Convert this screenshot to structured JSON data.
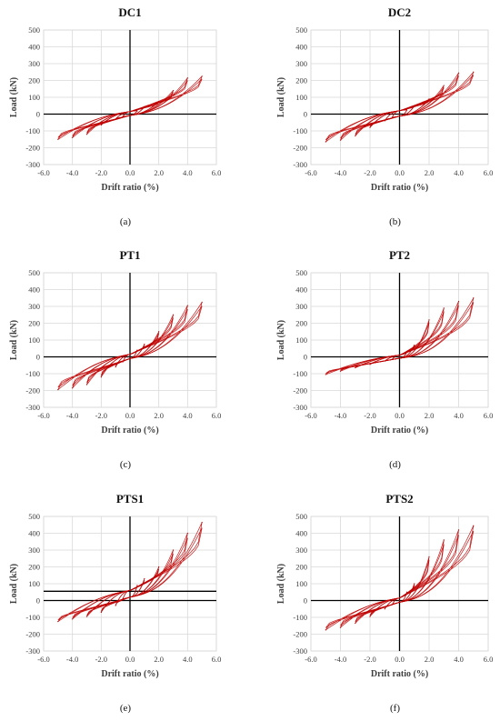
{
  "chart_data": [
    {
      "type": "line",
      "title": "DC1",
      "caption": "(a)",
      "xlabel": "Drift ratio (%)",
      "ylabel": "Load (kN)",
      "xlim": [
        -6,
        6
      ],
      "ylim": [
        -300,
        500
      ],
      "xticks": [
        "-6.0",
        "-4.0",
        "-2.0",
        "0.0",
        "2.0",
        "4.0",
        "6.0"
      ],
      "yticks": [
        "-300",
        "-200",
        "-100",
        "0",
        "100",
        "200",
        "300",
        "400",
        "500"
      ],
      "grid": true,
      "color": "#c00000",
      "peak_pos": [
        [
          0.5,
          20
        ],
        [
          1,
          45
        ],
        [
          2,
          75
        ],
        [
          3,
          140
        ],
        [
          4,
          215
        ],
        [
          5,
          225
        ]
      ],
      "peak_neg": [
        [
          -0.5,
          -15
        ],
        [
          -1,
          -30
        ],
        [
          -2,
          -65
        ],
        [
          -3,
          -120
        ],
        [
          -4,
          -140
        ],
        [
          -5,
          -150
        ]
      ],
      "pinch_pos": 15,
      "pinch_neg": -8,
      "pinch_slope": 12,
      "series": [
        {
          "x": [
            0,
            0.5,
            1,
            2,
            3,
            4,
            5
          ],
          "y": [
            0,
            20,
            45,
            75,
            140,
            215,
            225
          ]
        },
        {
          "x": [
            0,
            -0.5,
            -1,
            -2,
            -3,
            -4,
            -5
          ],
          "y": [
            0,
            -15,
            -30,
            -65,
            -120,
            -140,
            -150
          ]
        }
      ]
    },
    {
      "type": "line",
      "title": "DC2",
      "caption": "(b)",
      "xlabel": "Drift ratio (%)",
      "ylabel": "Load (kN)",
      "xlim": [
        -6,
        6
      ],
      "ylim": [
        -300,
        500
      ],
      "xticks": [
        "-6.0",
        "-4.0",
        "-2.0",
        "0.0",
        "2.0",
        "4.0",
        "6.0"
      ],
      "yticks": [
        "-300",
        "-200",
        "-100",
        "0",
        "100",
        "200",
        "300",
        "400",
        "500"
      ],
      "grid": true,
      "color": "#c00000",
      "peak_pos": [
        [
          0.5,
          25
        ],
        [
          1,
          50
        ],
        [
          2,
          90
        ],
        [
          3,
          170
        ],
        [
          4,
          245
        ],
        [
          5,
          250
        ]
      ],
      "peak_neg": [
        [
          -0.5,
          -20
        ],
        [
          -1,
          -40
        ],
        [
          -2,
          -80
        ],
        [
          -3,
          -130
        ],
        [
          -4,
          -155
        ],
        [
          -5,
          -165
        ]
      ],
      "pinch_pos": 20,
      "pinch_neg": -12,
      "pinch_slope": 12,
      "series": [
        {
          "x": [
            0,
            0.5,
            1,
            2,
            3,
            4,
            5
          ],
          "y": [
            0,
            25,
            50,
            90,
            170,
            245,
            250
          ]
        },
        {
          "x": [
            0,
            -0.5,
            -1,
            -2,
            -3,
            -4,
            -5
          ],
          "y": [
            0,
            -20,
            -40,
            -80,
            -130,
            -155,
            -165
          ]
        }
      ]
    },
    {
      "type": "line",
      "title": "PT1",
      "caption": "(c)",
      "xlabel": "Drift ratio (%)",
      "ylabel": "Load (kN)",
      "xlim": [
        -6,
        6
      ],
      "ylim": [
        -300,
        500
      ],
      "xticks": [
        "-6.0",
        "-4.0",
        "-2.0",
        "0.0",
        "2.0",
        "4.0",
        "6.0"
      ],
      "yticks": [
        "-300",
        "-200",
        "-100",
        "0",
        "100",
        "200",
        "300",
        "400",
        "500"
      ],
      "grid": true,
      "color": "#c00000",
      "peak_pos": [
        [
          0.5,
          40
        ],
        [
          1,
          75
        ],
        [
          2,
          150
        ],
        [
          3,
          250
        ],
        [
          4,
          305
        ],
        [
          5,
          325
        ]
      ],
      "peak_neg": [
        [
          -0.5,
          -30
        ],
        [
          -1,
          -60
        ],
        [
          -2,
          -120
        ],
        [
          -3,
          -165
        ],
        [
          -4,
          -185
        ],
        [
          -5,
          -195
        ]
      ],
      "pinch_pos": 15,
      "pinch_neg": -10,
      "pinch_slope": 15,
      "series": [
        {
          "x": [
            0,
            0.5,
            1,
            2,
            3,
            4,
            5
          ],
          "y": [
            0,
            40,
            75,
            150,
            250,
            305,
            325
          ]
        },
        {
          "x": [
            0,
            -0.5,
            -1,
            -2,
            -3,
            -4,
            -5
          ],
          "y": [
            0,
            -30,
            -60,
            -120,
            -165,
            -185,
            -195
          ]
        }
      ]
    },
    {
      "type": "line",
      "title": "PT2",
      "caption": "(d)",
      "xlabel": "Drift ratio (%)",
      "ylabel": "Load (kN)",
      "xlim": [
        -6,
        6
      ],
      "ylim": [
        -300,
        500
      ],
      "xticks": [
        "-6.0",
        "-4.0",
        "-2.0",
        "0.0",
        "2.0",
        "4.0",
        "6.0"
      ],
      "yticks": [
        "-300",
        "-200",
        "-100",
        "0",
        "100",
        "200",
        "300",
        "400",
        "500"
      ],
      "grid": true,
      "color": "#c00000",
      "peak_pos": [
        [
          0.5,
          30
        ],
        [
          1,
          70
        ],
        [
          2,
          220
        ],
        [
          3,
          290
        ],
        [
          4,
          330
        ],
        [
          5,
          350
        ]
      ],
      "peak_neg": [
        [
          -0.5,
          -15
        ],
        [
          -1,
          -25
        ],
        [
          -2,
          -45
        ],
        [
          -3,
          -65
        ],
        [
          -4,
          -85
        ],
        [
          -5,
          -105
        ]
      ],
      "pinch_pos": 10,
      "pinch_neg": -8,
      "pinch_slope": 10,
      "series": [
        {
          "x": [
            0,
            0.5,
            1,
            2,
            3,
            4,
            5
          ],
          "y": [
            0,
            30,
            70,
            220,
            290,
            330,
            350
          ]
        },
        {
          "x": [
            0,
            -0.5,
            -1,
            -2,
            -3,
            -4,
            -5
          ],
          "y": [
            0,
            -15,
            -25,
            -45,
            -65,
            -85,
            -105
          ]
        }
      ]
    },
    {
      "type": "line",
      "title": "PTS1",
      "caption": "(e)",
      "xlabel": "Drift ratio (%)",
      "ylabel": "Load (kN)",
      "xlim": [
        -6,
        6
      ],
      "ylim": [
        -300,
        500
      ],
      "xticks": [
        "-6.0",
        "-4.0",
        "-2.0",
        "0.0",
        "2.0",
        "4.0",
        "6.0"
      ],
      "yticks": [
        "-300",
        "-200",
        "-100",
        "0",
        "100",
        "200",
        "300",
        "400",
        "500"
      ],
      "grid": true,
      "color": "#c00000",
      "reference_line_y": 55,
      "peak_pos": [
        [
          0.5,
          90
        ],
        [
          1,
          130
        ],
        [
          2,
          200
        ],
        [
          3,
          300
        ],
        [
          4,
          400
        ],
        [
          5,
          465
        ]
      ],
      "peak_neg": [
        [
          -0.5,
          10
        ],
        [
          -1,
          -30
        ],
        [
          -2,
          -70
        ],
        [
          -3,
          -95
        ],
        [
          -4,
          -110
        ],
        [
          -5,
          -125
        ]
      ],
      "pinch_pos": 60,
      "pinch_neg": 20,
      "pinch_slope": 15,
      "series": [
        {
          "x": [
            0,
            0.5,
            1,
            2,
            3,
            4,
            5
          ],
          "y": [
            40,
            90,
            130,
            200,
            300,
            400,
            465
          ]
        },
        {
          "x": [
            0,
            -0.5,
            -1,
            -2,
            -3,
            -4,
            -5
          ],
          "y": [
            40,
            10,
            -30,
            -70,
            -95,
            -110,
            -125
          ]
        }
      ]
    },
    {
      "type": "line",
      "title": "PTS2",
      "caption": "(f)",
      "xlabel": "Drift ratio (%)",
      "ylabel": "Load (kN)",
      "xlim": [
        -6,
        6
      ],
      "ylim": [
        -300,
        500
      ],
      "xticks": [
        "-6.0",
        "-4.0",
        "-2.0",
        "0.0",
        "2.0",
        "4.0",
        "6.0"
      ],
      "yticks": [
        "-300",
        "-200",
        "-100",
        "0",
        "100",
        "200",
        "300",
        "400",
        "500"
      ],
      "grid": true,
      "color": "#c00000",
      "peak_pos": [
        [
          0.5,
          50
        ],
        [
          1,
          100
        ],
        [
          2,
          260
        ],
        [
          3,
          360
        ],
        [
          4,
          420
        ],
        [
          5,
          445
        ]
      ],
      "peak_neg": [
        [
          -0.5,
          -25
        ],
        [
          -1,
          -50
        ],
        [
          -2,
          -95
        ],
        [
          -3,
          -135
        ],
        [
          -4,
          -160
        ],
        [
          -5,
          -175
        ]
      ],
      "pinch_pos": 15,
      "pinch_neg": -10,
      "pinch_slope": 15,
      "series": [
        {
          "x": [
            0,
            0.5,
            1,
            2,
            3,
            4,
            5
          ],
          "y": [
            0,
            50,
            100,
            260,
            360,
            420,
            445
          ]
        },
        {
          "x": [
            0,
            -0.5,
            -1,
            -2,
            -3,
            -4,
            -5
          ],
          "y": [
            0,
            -25,
            -50,
            -95,
            -135,
            -160,
            -175
          ]
        }
      ]
    }
  ]
}
